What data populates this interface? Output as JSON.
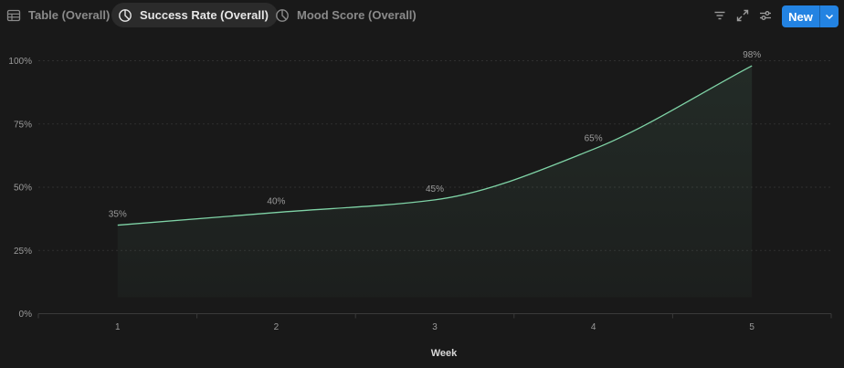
{
  "tabs": [
    {
      "label": "Table (Overall)",
      "icon": "table-icon"
    },
    {
      "label": "Success Rate (Overall)",
      "icon": "pie-chart-icon"
    },
    {
      "label": "Mood Score (Overall)",
      "icon": "pie-chart-icon"
    }
  ],
  "active_tab": 1,
  "toolbar": {
    "filter_icon": "filter-icon",
    "expand_icon": "expand-icon",
    "settings_icon": "sliders-icon",
    "new_label": "New",
    "new_dropdown_icon": "chevron-down-icon"
  },
  "colors": {
    "background": "#191919",
    "line": "#7fd3a6",
    "accent": "#2383e2"
  },
  "chart_data": {
    "type": "area",
    "categories": [
      "1",
      "2",
      "3",
      "4",
      "5"
    ],
    "values": [
      35,
      40,
      45,
      65,
      98
    ],
    "data_labels": [
      "35%",
      "40%",
      "45%",
      "65%",
      "98%"
    ],
    "ylim": [
      0,
      100
    ],
    "yticks": [
      "0%",
      "25%",
      "50%",
      "75%",
      "100%"
    ],
    "ytick_values": [
      0,
      25,
      50,
      75,
      100
    ],
    "xlabel": "Week",
    "ylabel": "",
    "grid": true,
    "smooth": true
  }
}
